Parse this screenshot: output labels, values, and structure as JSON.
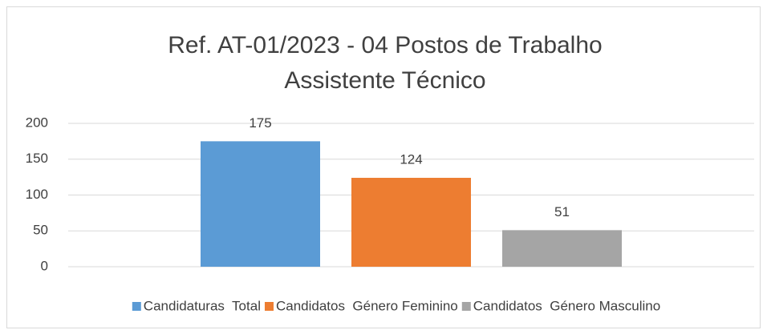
{
  "chart_data": {
    "type": "bar",
    "title": [
      "Ref. AT-01/2023 - 04 Postos de Trabalho",
      "Assistente Técnico"
    ],
    "categories": [
      null
    ],
    "series": [
      {
        "name": "Candidaturas  Total",
        "color": "#5b9bd5",
        "values": [
          175
        ]
      },
      {
        "name": "Candidatos  Género Feminino",
        "color": "#ed7d31",
        "values": [
          124
        ]
      },
      {
        "name": "Candidatos  Género Masculino",
        "color": "#a5a5a5",
        "values": [
          51
        ]
      }
    ],
    "ylim": [
      0,
      200
    ],
    "yticks": [
      0,
      50,
      100,
      150,
      200
    ],
    "grid": true,
    "legend": "bottom"
  }
}
